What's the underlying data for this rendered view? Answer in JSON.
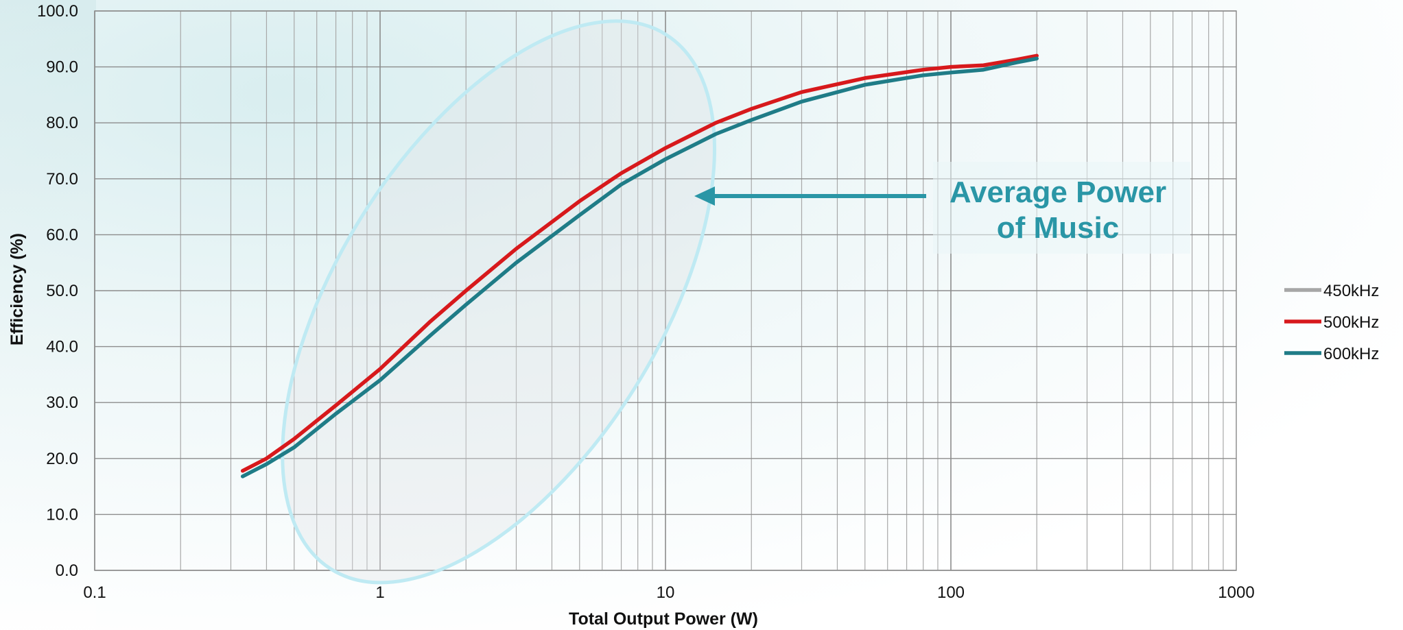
{
  "chart_data": {
    "type": "line",
    "title": "",
    "xlabel": "Total Output Power (W)",
    "ylabel": "Efficiency (%)",
    "x_scale": "log",
    "xlim": [
      0.1,
      1000
    ],
    "ylim": [
      0,
      100
    ],
    "x_ticks": [
      0.1,
      1,
      10,
      100,
      1000
    ],
    "x_tick_labels": [
      "0.1",
      "1",
      "10",
      "100",
      "1000"
    ],
    "y_ticks": [
      0,
      10,
      20,
      30,
      40,
      50,
      60,
      70,
      80,
      90,
      100
    ],
    "y_tick_labels": [
      "0.0",
      "10.0",
      "20.0",
      "30.0",
      "40.0",
      "50.0",
      "60.0",
      "70.0",
      "80.0",
      "90.0",
      "100.0"
    ],
    "grid": true,
    "legend_position": "right",
    "series": [
      {
        "name": "450kHz",
        "color": "#a6a6a6",
        "x": [],
        "y": []
      },
      {
        "name": "500kHz",
        "color": "#d7191c",
        "x": [
          0.33,
          0.4,
          0.5,
          0.7,
          1,
          1.5,
          2,
          3,
          5,
          7,
          10,
          15,
          20,
          30,
          50,
          80,
          100,
          130,
          170,
          200
        ],
        "y": [
          17.8,
          20.0,
          23.5,
          29.5,
          36.0,
          44.5,
          50.0,
          57.5,
          66.0,
          71.0,
          75.5,
          80.0,
          82.5,
          85.5,
          88.0,
          89.5,
          90.0,
          90.3,
          91.3,
          92.0
        ]
      },
      {
        "name": "600kHz",
        "color": "#1f7c87",
        "x": [
          0.33,
          0.4,
          0.5,
          0.7,
          1,
          1.5,
          2,
          3,
          5,
          7,
          10,
          15,
          20,
          30,
          50,
          80,
          100,
          130,
          170,
          200
        ],
        "y": [
          16.8,
          19.0,
          22.0,
          28.0,
          34.0,
          42.0,
          47.5,
          55.0,
          63.5,
          69.0,
          73.5,
          78.0,
          80.5,
          83.8,
          86.8,
          88.5,
          89.0,
          89.5,
          90.8,
          91.5
        ]
      }
    ],
    "annotation": {
      "line1": "Average Power",
      "line2": "of Music",
      "color": "#2a96a6",
      "ellipse_color": "#bfeaf3"
    }
  }
}
